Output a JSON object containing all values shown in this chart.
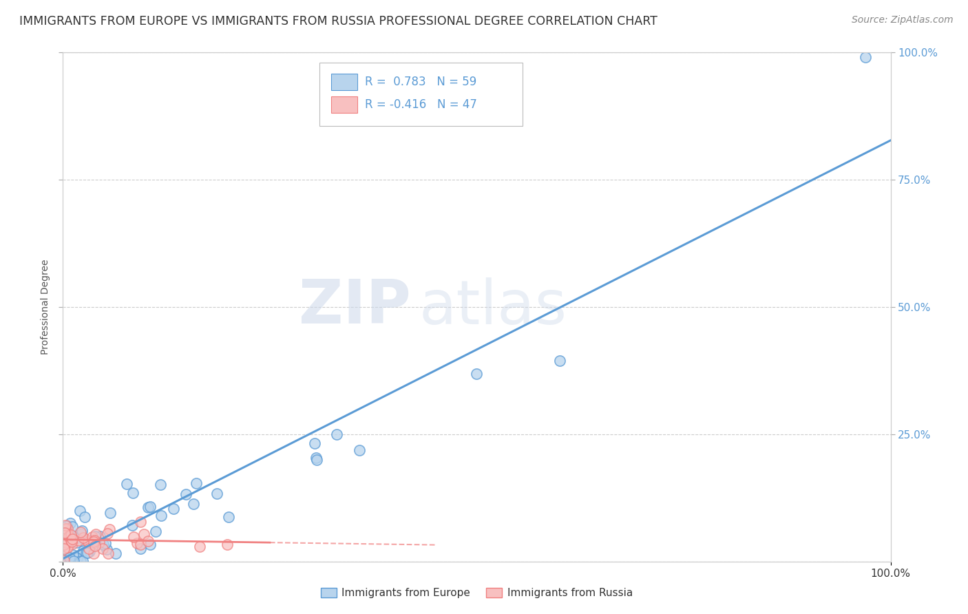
{
  "title": "IMMIGRANTS FROM EUROPE VS IMMIGRANTS FROM RUSSIA PROFESSIONAL DEGREE CORRELATION CHART",
  "source": "Source: ZipAtlas.com",
  "ylabel": "Professional Degree",
  "legend_eu_label": "Immigrants from Europe",
  "legend_ru_label": "Immigrants from Russia",
  "legend_eu_R": "0.783",
  "legend_eu_N": "59",
  "legend_ru_R": "-0.416",
  "legend_ru_N": "47",
  "watermark_1": "ZIP",
  "watermark_2": "atlas",
  "europe_color": "#5b9bd5",
  "europe_fill": "#b8d4ed",
  "russia_color": "#f08080",
  "russia_fill": "#f8c0c0",
  "background_color": "#ffffff",
  "grid_color": "#cccccc",
  "title_color": "#333333",
  "right_tick_color": "#5b9bd5",
  "title_fontsize": 12.5,
  "source_fontsize": 10,
  "axis_label_fontsize": 10,
  "tick_fontsize": 11,
  "legend_fontsize": 12,
  "marker_size": 120,
  "marker_linewidth": 1.2
}
